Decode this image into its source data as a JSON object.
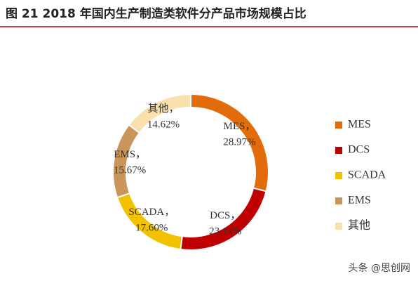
{
  "chart_data": {
    "type": "donut",
    "title": "图 21 2018 年国内生产制造类软件分产品市场规模占比",
    "categories": [
      "MES",
      "DCS",
      "SCADA",
      "EMS",
      "其他"
    ],
    "values": [
      28.97,
      23.14,
      17.6,
      15.67,
      14.62
    ],
    "value_labels": [
      "28.97%",
      "23.14%",
      "17.60%",
      "15.67%",
      "14.62%"
    ],
    "label_separator": "，",
    "colors": [
      "#e36c0a",
      "#c00000",
      "#f2c100",
      "#c9955b",
      "#f9e0ad"
    ],
    "legend": "right",
    "watermark": "头条 @思创网"
  }
}
